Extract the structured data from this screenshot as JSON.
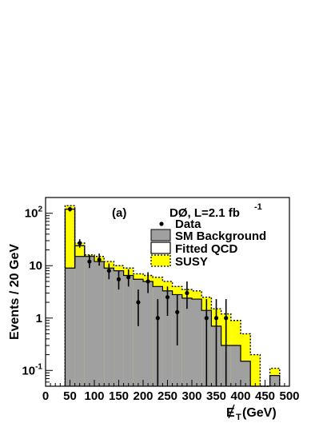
{
  "chart_data": {
    "type": "histogram",
    "panel_label": "(a)",
    "annotation": {
      "main": "DØ, L=2.1 fb",
      "sup": "-1"
    },
    "xlabel": {
      "main": "E",
      "sub": "T",
      "unit": " (GeV)"
    },
    "ylabel": "Events / 20 GeV",
    "xlim": [
      0,
      500
    ],
    "ylim": [
      0.05,
      200
    ],
    "yscale": "log",
    "xticks": [
      0,
      50,
      100,
      150,
      200,
      250,
      300,
      350,
      400,
      450,
      500
    ],
    "yticks": [
      {
        "value": 0.1,
        "base": "10",
        "exp": "-1"
      },
      {
        "value": 1,
        "base": "1",
        "exp": ""
      },
      {
        "value": 10,
        "base": "10",
        "exp": ""
      },
      {
        "value": 100,
        "base": "10",
        "exp": "2"
      }
    ],
    "bin_edges": [
      40,
      60,
      80,
      100,
      120,
      140,
      160,
      180,
      200,
      220,
      240,
      260,
      280,
      300,
      320,
      340,
      360,
      380,
      400,
      420,
      440,
      460,
      480
    ],
    "legend": [
      {
        "key": "data",
        "label": "Data"
      },
      {
        "key": "sm",
        "label": "SM Background"
      },
      {
        "key": "qcd",
        "label": "Fitted QCD"
      },
      {
        "key": "susy",
        "label": "SUSY"
      }
    ],
    "series": {
      "sm_background": [
        9,
        15,
        15,
        12,
        9,
        8,
        6.5,
        5.5,
        5,
        4,
        3.3,
        2.8,
        2.4,
        2.3,
        1.4,
        0.7,
        0.3,
        0.3,
        0.15,
        0.04,
        0.02,
        0.08
      ],
      "fitted_qcd": [
        120,
        24,
        0,
        0,
        0,
        0,
        0,
        0,
        0,
        0,
        0,
        0,
        0,
        0,
        0,
        0,
        0,
        0,
        0,
        0,
        0,
        0
      ],
      "total_susy": [
        140,
        27,
        16,
        15,
        12,
        10,
        9,
        7,
        6.5,
        6,
        5,
        4,
        3.5,
        3.3,
        2.5,
        1.5,
        1.2,
        0.9,
        0.5,
        0.2,
        0.05,
        0.11
      ],
      "data": [
        {
          "x": 50,
          "y": 120,
          "lo": 108,
          "hi": 132
        },
        {
          "x": 70,
          "y": 27,
          "lo": 22,
          "hi": 32
        },
        {
          "x": 90,
          "y": 12,
          "lo": 9,
          "hi": 16
        },
        {
          "x": 110,
          "y": 13,
          "lo": 10,
          "hi": 17
        },
        {
          "x": 130,
          "y": 8,
          "lo": 5.5,
          "hi": 11
        },
        {
          "x": 150,
          "y": 5.5,
          "lo": 3.5,
          "hi": 8
        },
        {
          "x": 170,
          "y": 6,
          "lo": 4,
          "hi": 8.5
        },
        {
          "x": 190,
          "y": 2,
          "lo": 0.7,
          "hi": 3.5
        },
        {
          "x": 210,
          "y": 5,
          "lo": 3,
          "hi": 7.5
        },
        {
          "x": 230,
          "y": 1,
          "lo": 0.05,
          "hi": 2.3
        },
        {
          "x": 250,
          "y": 2.5,
          "lo": 1.1,
          "hi": 4
        },
        {
          "x": 270,
          "y": 1.3,
          "lo": 0.3,
          "hi": 2.8
        },
        {
          "x": 290,
          "y": 3,
          "lo": 1.5,
          "hi": 5
        },
        {
          "x": 330,
          "y": 1,
          "lo": 0.05,
          "hi": 2.3
        },
        {
          "x": 350,
          "y": 1,
          "lo": 0.05,
          "hi": 2.3
        },
        {
          "x": 370,
          "y": 1,
          "lo": 0.05,
          "hi": 2.3
        }
      ]
    },
    "colors": {
      "sm": "#a0a0a0",
      "susy": "#ffff00",
      "frame": "#000000",
      "background": "#ffffff"
    }
  }
}
